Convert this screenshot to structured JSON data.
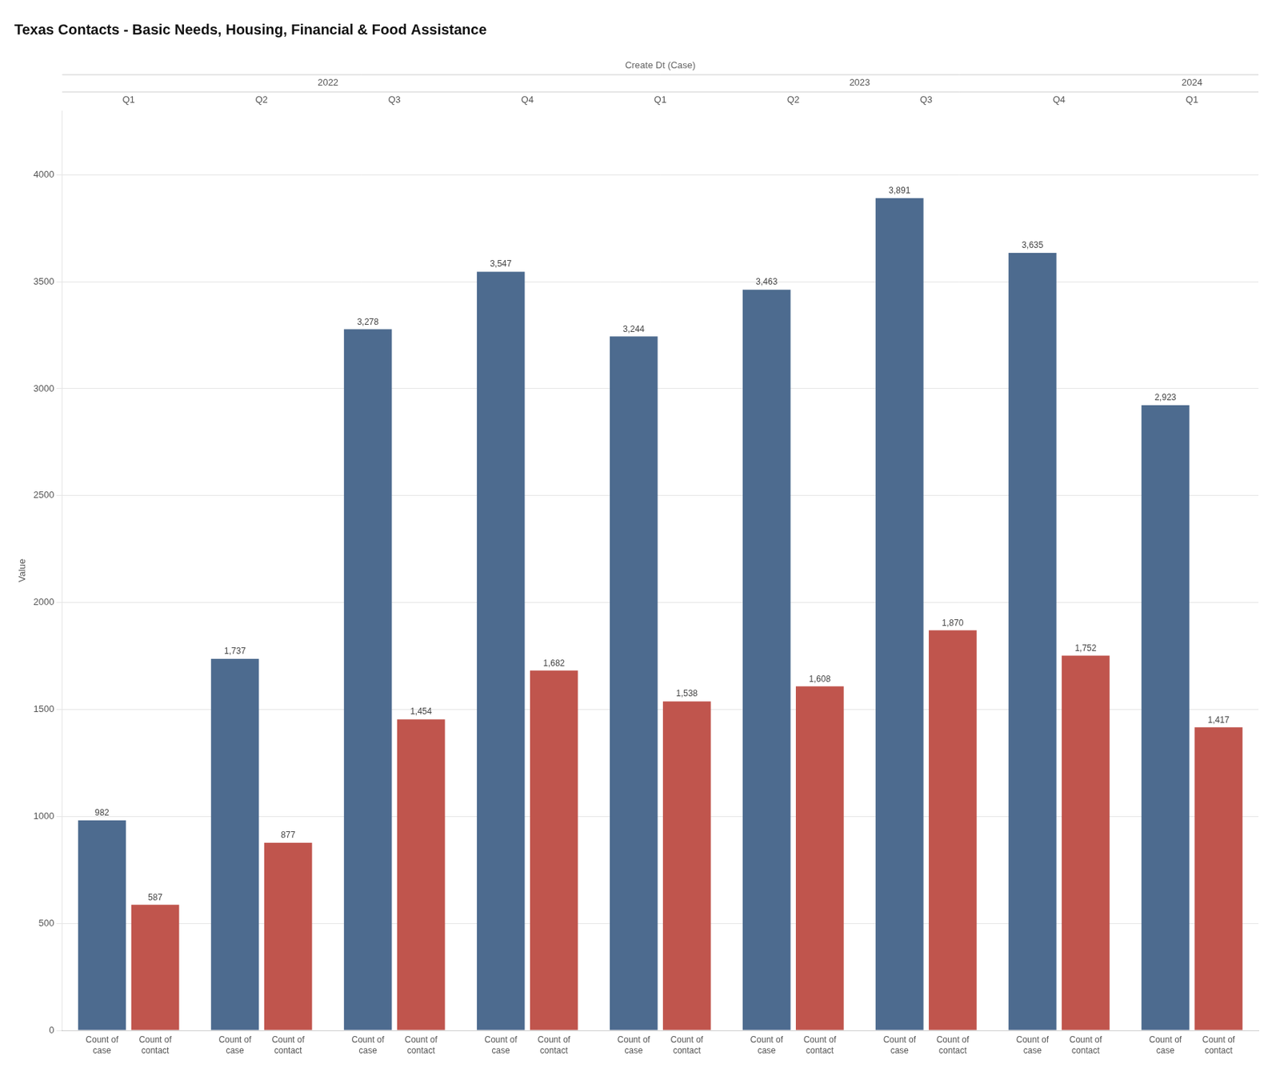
{
  "chart_data": {
    "type": "bar",
    "title": "Texas Contacts - Basic Needs, Housing, Financial & Food Assistance",
    "x_label": "Create Dt (Case)",
    "y_label": "Value",
    "categories": [
      "Q1",
      "Q2",
      "Q3",
      "Q4",
      "Q1",
      "Q2",
      "Q3",
      "Q4",
      "Q1"
    ],
    "groups": [
      "2022",
      "2022",
      "2022",
      "2022",
      "2023",
      "2023",
      "2023",
      "2023",
      "2024"
    ],
    "series": [
      {
        "name": "Count of case",
        "color": "#4d6b8f",
        "values": [
          982,
          1737,
          3278,
          3547,
          3244,
          3463,
          3891,
          3635,
          2923
        ],
        "value_labels": [
          "982",
          "1,737",
          "3,278",
          "3,547",
          "3,244",
          "3,463",
          "3,891",
          "3,635",
          "2,923"
        ]
      },
      {
        "name": "Count of contact",
        "color": "#c0554d",
        "values": [
          587,
          877,
          1454,
          1682,
          1538,
          1608,
          1870,
          1752,
          1417
        ],
        "value_labels": [
          "587",
          "877",
          "1,454",
          "1,682",
          "1,538",
          "1,608",
          "1,870",
          "1,752",
          "1,417"
        ]
      }
    ],
    "ylim": [
      0,
      4300
    ],
    "yticks": [
      0,
      500,
      1000,
      1500,
      2000,
      2500,
      3000,
      3500,
      4000
    ],
    "grid": true,
    "data_labels": true
  }
}
